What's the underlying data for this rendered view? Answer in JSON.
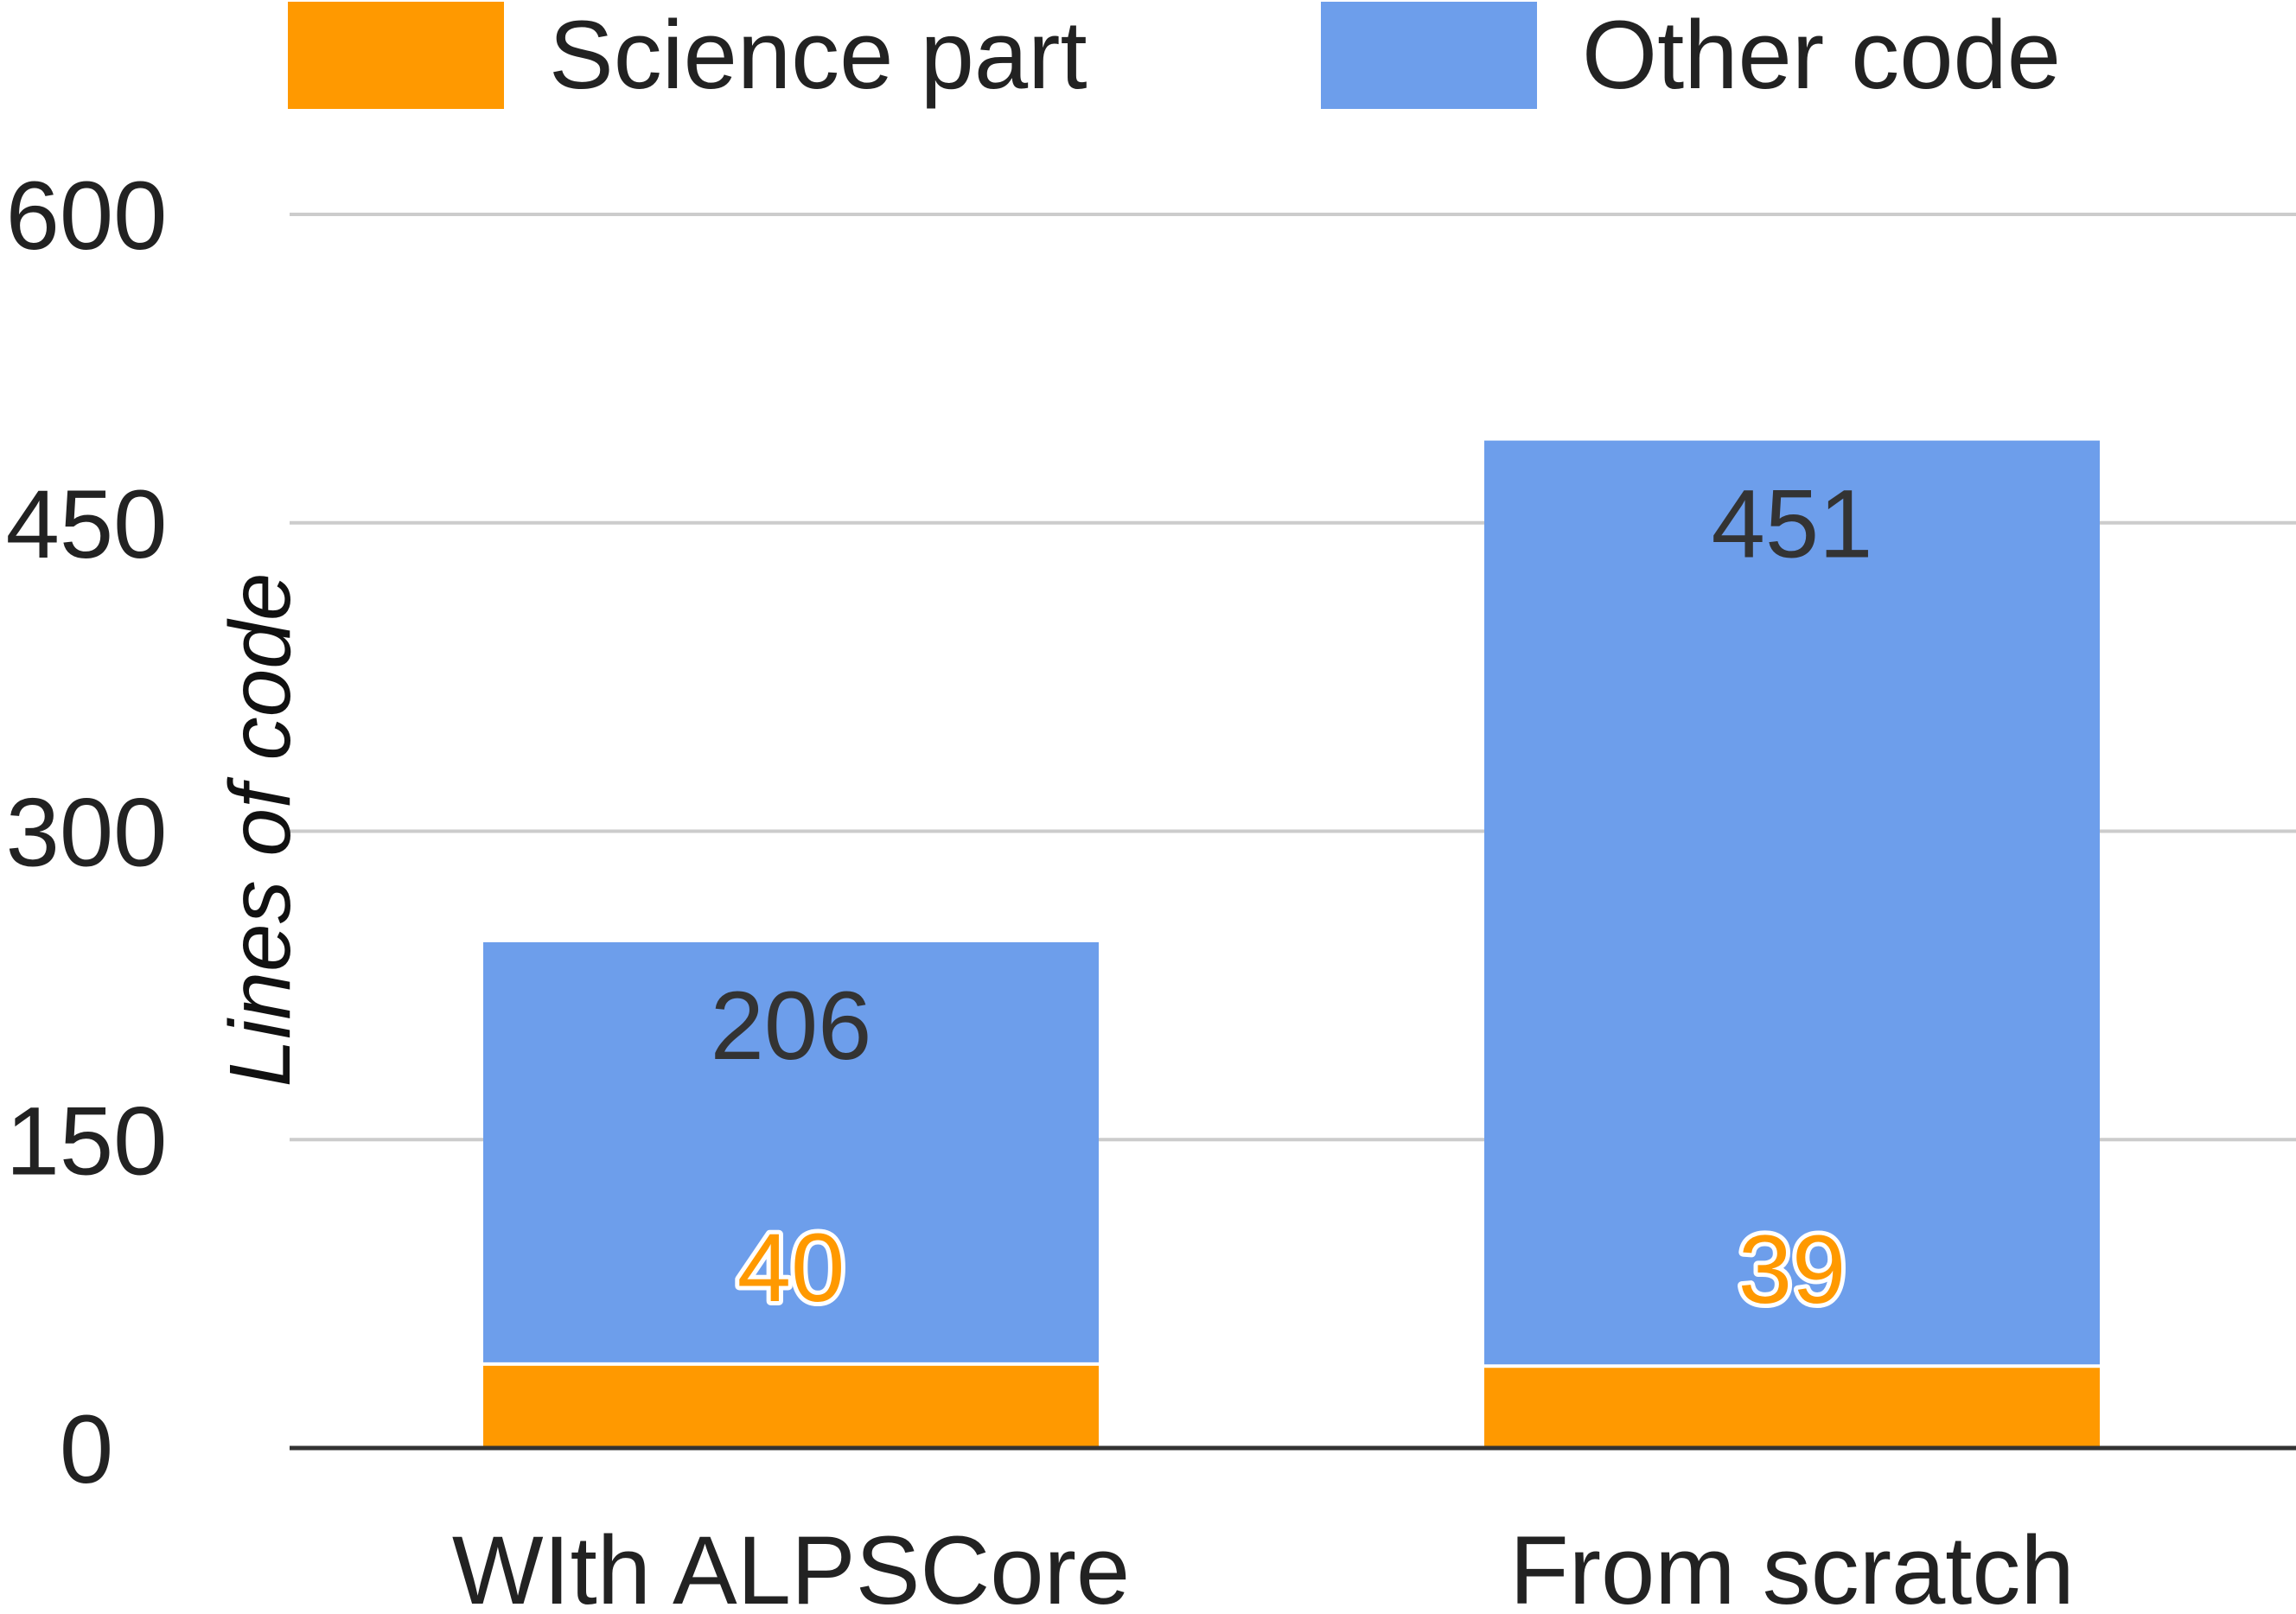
{
  "chart_data": {
    "type": "bar",
    "stacked": true,
    "categories": [
      "WIth ALPSCore",
      "From scratch"
    ],
    "series": [
      {
        "name": "Science part",
        "values": [
          40,
          39
        ],
        "color": "#ff9900"
      },
      {
        "name": "Other code",
        "values": [
          206,
          451
        ],
        "color": "#6d9eeb"
      }
    ],
    "ylabel": "Lines of code",
    "xlabel": "",
    "ylim": [
      0,
      600
    ],
    "yticks": [
      "0",
      "150",
      "300",
      "450",
      "600"
    ],
    "grid": true,
    "legend": "top"
  }
}
